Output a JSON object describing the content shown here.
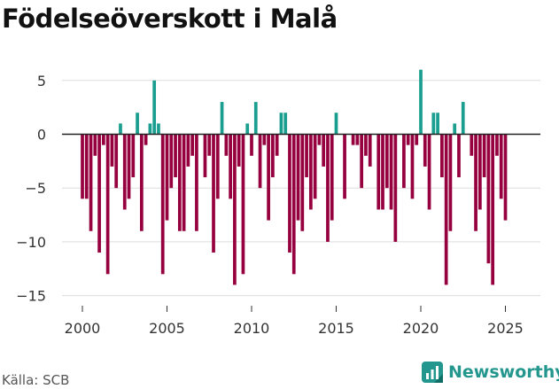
{
  "title": "Födelseöverskott i Malå",
  "source": "Källa: SCB",
  "brand": "Newsworthy",
  "colors": {
    "positive": "#1a9e8f",
    "negative": "#96003f",
    "grid": "#dddddd",
    "zero": "#222222",
    "brand": "#23978e"
  },
  "chart_data": {
    "type": "bar",
    "frequency": "monthly",
    "start": 2000.0,
    "step": 0.25,
    "values": [
      -6,
      -6,
      -9,
      -2,
      -11,
      -1,
      -13,
      -3,
      -5,
      1,
      -7,
      -6,
      -4,
      2,
      -9,
      -1,
      1,
      5,
      1,
      -13,
      -8,
      -5,
      -4,
      -9,
      -9,
      -3,
      -2,
      -9,
      0,
      -4,
      -2,
      -11,
      -6,
      3,
      -2,
      -6,
      -14,
      -3,
      -13,
      1,
      -2,
      3,
      -5,
      -1,
      -8,
      -4,
      -2,
      2,
      2,
      -11,
      -13,
      -8,
      -9,
      -4,
      -7,
      -6,
      -1,
      -3,
      -10,
      -8,
      2,
      0,
      -6,
      0,
      -1,
      -1,
      -5,
      -2,
      -3,
      0,
      -7,
      -7,
      -5,
      -7,
      -10,
      0,
      -5,
      -1,
      -6,
      -1,
      6,
      -3,
      -7,
      2,
      2,
      -4,
      -14,
      -9,
      1,
      -4,
      3,
      0,
      -2,
      -9,
      -7,
      -4,
      -12,
      -14,
      -2,
      -6,
      -8
    ],
    "xlim": [
      1998.9,
      2026.9
    ],
    "ylim": [
      -15,
      6
    ],
    "yticks": [
      5,
      0,
      -5,
      -10,
      -15
    ],
    "ytick_labels": [
      "5",
      "0",
      "−5",
      "−10",
      "−15"
    ],
    "xticks": [
      2000,
      2005,
      2010,
      2015,
      2020,
      2025
    ],
    "xtick_labels": [
      "2000",
      "2005",
      "2010",
      "2015",
      "2020",
      "2025"
    ],
    "xlabel": "",
    "ylabel": ""
  }
}
